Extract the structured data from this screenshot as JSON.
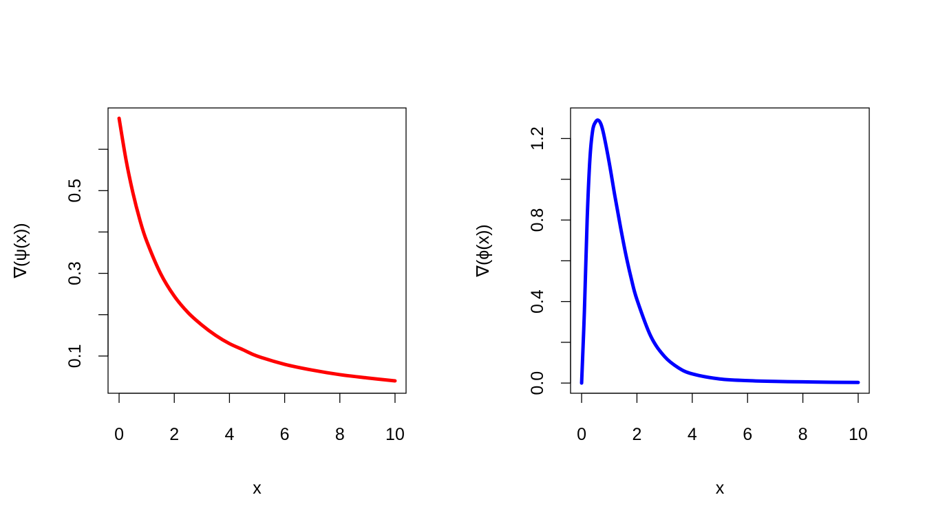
{
  "chart_data": [
    {
      "type": "line",
      "title": "",
      "xlabel": "x",
      "ylabel": "∇(ψ(x))",
      "xlim": [
        -0.4,
        10.4
      ],
      "ylim": [
        0.01,
        0.7
      ],
      "x_ticks": [
        0,
        2,
        4,
        6,
        8,
        10
      ],
      "y_ticks": [
        0.1,
        0.2,
        0.3,
        0.4,
        0.5,
        0.6
      ],
      "y_tick_labels": [
        "0.1",
        "",
        "0.3",
        "",
        "0.5",
        ""
      ],
      "grid": false,
      "series": [
        {
          "color": "#ff0000",
          "x": [
            0,
            0.25,
            0.5,
            0.75,
            1,
            1.5,
            2,
            2.5,
            3,
            3.5,
            4,
            4.5,
            5,
            6,
            7,
            8,
            9,
            10
          ],
          "y": [
            0.675,
            0.575,
            0.495,
            0.43,
            0.378,
            0.3,
            0.245,
            0.205,
            0.175,
            0.15,
            0.13,
            0.115,
            0.1,
            0.08,
            0.066,
            0.055,
            0.047,
            0.04
          ]
        }
      ]
    },
    {
      "type": "line",
      "title": "",
      "xlabel": "x",
      "ylabel": "∇(ϕ(x))",
      "xlim": [
        -0.4,
        10.4
      ],
      "ylim": [
        -0.05,
        1.35
      ],
      "x_ticks": [
        0,
        2,
        4,
        6,
        8,
        10
      ],
      "y_ticks": [
        0.0,
        0.2,
        0.4,
        0.6,
        0.8,
        1.0,
        1.2
      ],
      "y_tick_labels": [
        "0.0",
        "",
        "0.4",
        "",
        "0.8",
        "",
        "1.2"
      ],
      "grid": false,
      "series": [
        {
          "color": "#0000ff",
          "x": [
            0,
            0.1,
            0.2,
            0.3,
            0.4,
            0.5,
            0.6,
            0.7,
            0.8,
            1,
            1.2,
            1.4,
            1.6,
            1.8,
            2,
            2.5,
            3,
            3.5,
            4,
            5,
            6,
            7,
            8,
            9,
            10
          ],
          "y": [
            0,
            0.35,
            0.8,
            1.1,
            1.24,
            1.28,
            1.29,
            1.27,
            1.22,
            1.08,
            0.92,
            0.77,
            0.63,
            0.51,
            0.41,
            0.23,
            0.13,
            0.075,
            0.045,
            0.02,
            0.012,
            0.008,
            0.006,
            0.004,
            0.003
          ]
        }
      ]
    }
  ]
}
